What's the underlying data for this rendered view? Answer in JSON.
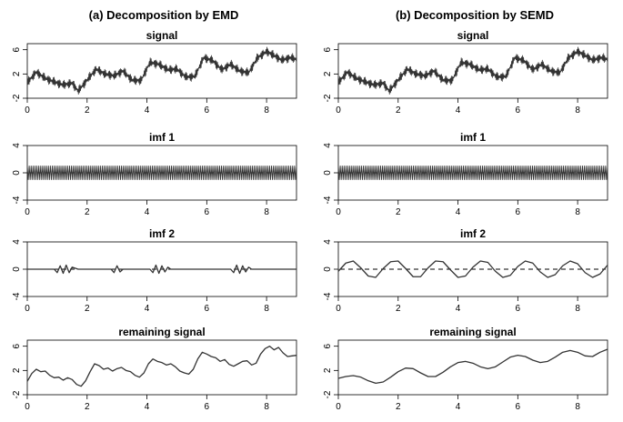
{
  "column_titles": [
    "(a) Decomposition by EMD",
    "(b) Decomposition by SEMD"
  ],
  "colors": {
    "series": "#333333",
    "axis": "#000000"
  },
  "chart_data": [
    {
      "type": "line",
      "title": "signal",
      "xlabel": "",
      "ylabel": "",
      "xlim": [
        0,
        9
      ],
      "ylim": [
        -2,
        7
      ],
      "xticks": [
        0,
        2,
        4,
        6,
        8
      ],
      "yticks": [
        -2,
        2,
        6
      ],
      "xtick_labels": [
        "0",
        "2",
        "4",
        "6",
        "8"
      ],
      "ytick_labels": [
        "-2",
        "2",
        "6"
      ],
      "zero_line": false,
      "series": [
        {
          "x": [
            0,
            0.3,
            0.6,
            0.9,
            1.2,
            1.5,
            1.7,
            2.0,
            2.3,
            2.6,
            2.9,
            3.2,
            3.5,
            3.8,
            4.1,
            4.4,
            4.7,
            5.0,
            5.3,
            5.6,
            5.9,
            6.2,
            6.5,
            6.8,
            7.1,
            7.4,
            7.7,
            8.0,
            8.2,
            8.5,
            8.8,
            9.0
          ],
          "y": [
            0.6,
            2.3,
            1.3,
            0.7,
            0.2,
            0.5,
            -0.8,
            1.0,
            2.8,
            2.0,
            1.7,
            2.5,
            1.0,
            0.9,
            3.9,
            3.6,
            2.7,
            2.8,
            1.5,
            1.6,
            4.7,
            4.2,
            2.7,
            3.6,
            2.5,
            2.2,
            4.7,
            5.7,
            5.2,
            4.3,
            4.7,
            4.4
          ],
          "noise_amplitude": 0.8
        }
      ]
    },
    {
      "type": "line",
      "title": "signal",
      "xlabel": "",
      "ylabel": "",
      "xlim": [
        0,
        9
      ],
      "ylim": [
        -2,
        7
      ],
      "xticks": [
        0,
        2,
        4,
        6,
        8
      ],
      "yticks": [
        -2,
        2,
        6
      ],
      "xtick_labels": [
        "0",
        "2",
        "4",
        "6",
        "8"
      ],
      "ytick_labels": [
        "-2",
        "2",
        "6"
      ],
      "zero_line": false,
      "series": [
        {
          "x": [
            0,
            0.3,
            0.6,
            0.9,
            1.2,
            1.5,
            1.7,
            2.0,
            2.3,
            2.6,
            2.9,
            3.2,
            3.5,
            3.8,
            4.1,
            4.4,
            4.7,
            5.0,
            5.3,
            5.6,
            5.9,
            6.2,
            6.5,
            6.8,
            7.1,
            7.4,
            7.7,
            8.0,
            8.2,
            8.5,
            8.8,
            9.0
          ],
          "y": [
            0.6,
            2.3,
            1.3,
            0.7,
            0.2,
            0.5,
            -0.8,
            1.0,
            2.8,
            2.0,
            1.7,
            2.5,
            1.0,
            0.9,
            3.9,
            3.6,
            2.7,
            2.8,
            1.5,
            1.6,
            4.7,
            4.2,
            2.7,
            3.6,
            2.5,
            2.2,
            4.7,
            5.7,
            5.2,
            4.3,
            4.7,
            4.4
          ],
          "noise_amplitude": 0.8
        }
      ]
    },
    {
      "type": "line",
      "title": "imf 1",
      "xlabel": "",
      "ylabel": "",
      "xlim": [
        0,
        9
      ],
      "ylim": [
        -4,
        4
      ],
      "xticks": [
        0,
        2,
        4,
        6,
        8
      ],
      "yticks": [
        -4,
        0,
        4
      ],
      "xtick_labels": [
        "0",
        "2",
        "4",
        "6",
        "8"
      ],
      "ytick_labels": [
        "-4",
        "0",
        "4"
      ],
      "zero_line": true,
      "series": [
        {
          "x": [
            0,
            9
          ],
          "y": [
            0,
            0
          ],
          "oscillation_amplitude": 1.0,
          "oscillation_cycles": 140
        }
      ]
    },
    {
      "type": "line",
      "title": "imf 1",
      "xlabel": "",
      "ylabel": "",
      "xlim": [
        0,
        9
      ],
      "ylim": [
        -4,
        4
      ],
      "xticks": [
        0,
        2,
        4,
        6,
        8
      ],
      "yticks": [
        -4,
        0,
        4
      ],
      "xtick_labels": [
        "0",
        "2",
        "4",
        "6",
        "8"
      ],
      "ytick_labels": [
        "-4",
        "0",
        "4"
      ],
      "zero_line": true,
      "series": [
        {
          "x": [
            0,
            9
          ],
          "y": [
            0,
            0
          ],
          "oscillation_amplitude": 1.0,
          "oscillation_cycles": 140
        }
      ]
    },
    {
      "type": "line",
      "title": "imf 2",
      "xlabel": "",
      "ylabel": "",
      "xlim": [
        0,
        9
      ],
      "ylim": [
        -4,
        4
      ],
      "xticks": [
        0,
        2,
        4,
        6,
        8
      ],
      "yticks": [
        -4,
        0,
        4
      ],
      "xtick_labels": [
        "0",
        "2",
        "4",
        "6",
        "8"
      ],
      "ytick_labels": [
        "-4",
        "0",
        "4"
      ],
      "zero_line": true,
      "series": [
        {
          "x": [
            0,
            0.9,
            1.0,
            1.1,
            1.2,
            1.3,
            1.4,
            1.5,
            1.7,
            2.8,
            2.9,
            3.0,
            3.1,
            3.2,
            4.1,
            4.2,
            4.3,
            4.4,
            4.5,
            4.6,
            4.7,
            4.8,
            6.8,
            6.9,
            7.0,
            7.1,
            7.2,
            7.3,
            7.4,
            7.5,
            8.9,
            9.0
          ],
          "y": [
            0,
            0,
            -0.5,
            0.5,
            -0.6,
            0.6,
            -0.5,
            0.3,
            0,
            0,
            -0.5,
            0.5,
            -0.4,
            0,
            0,
            -0.5,
            0.6,
            -0.6,
            0.5,
            -0.4,
            0.3,
            0,
            0,
            -0.5,
            0.6,
            -0.6,
            0.5,
            -0.4,
            0.3,
            0,
            0,
            0
          ]
        }
      ]
    },
    {
      "type": "line",
      "title": "imf 2",
      "xlabel": "",
      "ylabel": "",
      "xlim": [
        0,
        9
      ],
      "ylim": [
        -4,
        4
      ],
      "xticks": [
        0,
        2,
        4,
        6,
        8
      ],
      "yticks": [
        -4,
        0,
        4
      ],
      "xtick_labels": [
        "0",
        "2",
        "4",
        "6",
        "8"
      ],
      "ytick_labels": [
        "-4",
        "0",
        "4"
      ],
      "zero_line": true,
      "series": [
        {
          "x": [
            0,
            0.25,
            0.5,
            0.75,
            1.0,
            1.25,
            1.5,
            1.75,
            2.0,
            2.25,
            2.5,
            2.75,
            3.0,
            3.25,
            3.5,
            3.75,
            4.0,
            4.25,
            4.5,
            4.75,
            5.0,
            5.25,
            5.5,
            5.75,
            6.0,
            6.25,
            6.5,
            6.75,
            7.0,
            7.25,
            7.5,
            7.75,
            8.0,
            8.25,
            8.5,
            8.75,
            9.0
          ],
          "y": [
            -0.3,
            0.9,
            1.2,
            0.2,
            -1.0,
            -1.2,
            0.1,
            1.1,
            1.2,
            0.1,
            -1.1,
            -1.1,
            0.2,
            1.2,
            1.1,
            -0.1,
            -1.2,
            -1.0,
            0.3,
            1.2,
            1.0,
            -0.3,
            -1.2,
            -0.9,
            0.4,
            1.2,
            0.9,
            -0.4,
            -1.2,
            -0.8,
            0.5,
            1.2,
            0.8,
            -0.5,
            -1.2,
            -0.7,
            0.6
          ]
        }
      ]
    },
    {
      "type": "line",
      "title": "remaining signal",
      "xlabel": "",
      "ylabel": "",
      "xlim": [
        0,
        9
      ],
      "ylim": [
        -2,
        7
      ],
      "xticks": [
        0,
        2,
        4,
        6,
        8
      ],
      "yticks": [
        -2,
        2,
        6
      ],
      "xtick_labels": [
        "0",
        "2",
        "4",
        "6",
        "8"
      ],
      "ytick_labels": [
        "-2",
        "2",
        "6"
      ],
      "zero_line": false,
      "series": [
        {
          "x": [
            0,
            0.15,
            0.3,
            0.45,
            0.6,
            0.75,
            0.9,
            1.05,
            1.2,
            1.35,
            1.5,
            1.65,
            1.8,
            1.95,
            2.1,
            2.25,
            2.4,
            2.55,
            2.7,
            2.85,
            3.0,
            3.15,
            3.3,
            3.45,
            3.6,
            3.75,
            3.9,
            4.05,
            4.2,
            4.35,
            4.5,
            4.65,
            4.8,
            4.95,
            5.1,
            5.25,
            5.4,
            5.55,
            5.7,
            5.85,
            6.0,
            6.15,
            6.3,
            6.45,
            6.6,
            6.75,
            6.9,
            7.05,
            7.2,
            7.35,
            7.5,
            7.65,
            7.8,
            7.95,
            8.1,
            8.25,
            8.4,
            8.55,
            8.7,
            8.85,
            9.0
          ],
          "y": [
            0.2,
            1.5,
            2.2,
            1.8,
            1.9,
            1.2,
            0.8,
            0.9,
            0.4,
            0.8,
            0.5,
            -0.3,
            -0.6,
            0.3,
            1.8,
            3.1,
            2.8,
            2.2,
            2.4,
            1.9,
            2.3,
            2.5,
            2.0,
            1.8,
            1.2,
            0.9,
            1.6,
            3.1,
            3.9,
            3.5,
            3.3,
            2.9,
            3.1,
            2.6,
            1.9,
            1.6,
            1.4,
            2.2,
            3.9,
            5.0,
            4.7,
            4.3,
            4.1,
            3.5,
            3.8,
            3.0,
            2.7,
            3.1,
            3.5,
            3.6,
            2.9,
            3.2,
            4.7,
            5.6,
            6.0,
            5.4,
            5.8,
            4.9,
            4.3,
            4.4,
            4.5
          ]
        }
      ]
    },
    {
      "type": "line",
      "title": "remaining signal",
      "xlabel": "",
      "ylabel": "",
      "xlim": [
        0,
        9
      ],
      "ylim": [
        -2,
        7
      ],
      "xticks": [
        0,
        2,
        4,
        6,
        8
      ],
      "yticks": [
        -2,
        2,
        6
      ],
      "xtick_labels": [
        "0",
        "2",
        "4",
        "6",
        "8"
      ],
      "ytick_labels": [
        "-2",
        "2",
        "6"
      ],
      "zero_line": false,
      "series": [
        {
          "x": [
            0,
            0.25,
            0.5,
            0.75,
            1.0,
            1.25,
            1.5,
            1.75,
            2.0,
            2.25,
            2.5,
            2.75,
            3.0,
            3.25,
            3.5,
            3.75,
            4.0,
            4.25,
            4.5,
            4.75,
            5.0,
            5.25,
            5.5,
            5.75,
            6.0,
            6.25,
            6.5,
            6.75,
            7.0,
            7.25,
            7.5,
            7.75,
            8.0,
            8.25,
            8.5,
            8.75,
            9.0
          ],
          "y": [
            0.7,
            1.0,
            1.15,
            0.9,
            0.3,
            -0.1,
            0.1,
            0.9,
            1.8,
            2.4,
            2.3,
            1.6,
            1.0,
            1.0,
            1.7,
            2.6,
            3.3,
            3.5,
            3.2,
            2.6,
            2.3,
            2.6,
            3.4,
            4.2,
            4.5,
            4.3,
            3.7,
            3.3,
            3.5,
            4.2,
            5.0,
            5.3,
            5.0,
            4.4,
            4.3,
            5.0,
            5.5
          ]
        }
      ]
    }
  ]
}
